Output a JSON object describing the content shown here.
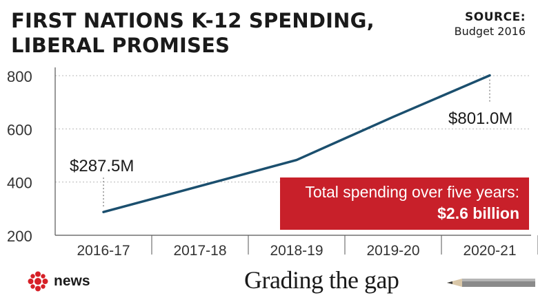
{
  "header": {
    "title_line1": "FIRST NATIONS K-12 SPENDING,",
    "title_line2": "LIBERAL PROMISES",
    "source_label": "SOURCE:",
    "source_value": "Budget 2016"
  },
  "chart_data": {
    "type": "line",
    "title": "FIRST NATIONS K-12 SPENDING, LIBERAL PROMISES",
    "categories": [
      "2016-17",
      "2017-18",
      "2018-19",
      "2019-20",
      "2020-21"
    ],
    "series": [
      {
        "values": [
          287.5,
          385,
          483,
          645,
          801.0
        ],
        "color": "#1b4f6e"
      }
    ],
    "ylim": [
      200,
      800
    ],
    "yticks": [
      200,
      400,
      600,
      800
    ],
    "grid": true,
    "annotations": [
      {
        "category": "2016-17",
        "text": "$287.5M"
      },
      {
        "category": "2020-21",
        "text": "$801.0M"
      }
    ]
  },
  "callout": {
    "line1": "Total spending over five years:",
    "line2": "$2.6 billion",
    "color": "#c8202a"
  },
  "footer": {
    "brand": "news",
    "tagline": "Grading the gap",
    "logo_icon": "cbc-gem-icon",
    "decor_icon": "pencil-icon"
  }
}
